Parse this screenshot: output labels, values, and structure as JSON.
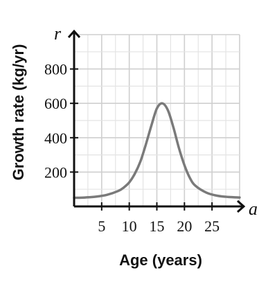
{
  "chart_data": {
    "type": "line",
    "title": "",
    "xlabel": "Age (years)",
    "ylabel": "Growth rate (kg/yr)",
    "x_var": "a",
    "y_var": "r",
    "xlim": [
      0,
      30
    ],
    "ylim": [
      0,
      1000
    ],
    "x_ticks": [
      5,
      10,
      15,
      20,
      25
    ],
    "x_tick_labels": [
      "5",
      "10",
      "15",
      "20",
      "25"
    ],
    "y_ticks": [
      200,
      400,
      600,
      800
    ],
    "y_tick_labels": [
      "200",
      "400",
      "600",
      "800"
    ],
    "grid": true,
    "x_minor_step": 2.5,
    "y_minor_step": 100,
    "series": [
      {
        "color": "#7a7a7a",
        "x": [
          0,
          2,
          4,
          6,
          8,
          9,
          10,
          11,
          12,
          13,
          14,
          15,
          16,
          17,
          18,
          19,
          20,
          21,
          22,
          24,
          26,
          28,
          30
        ],
        "y": [
          50,
          52,
          57,
          68,
          90,
          110,
          140,
          190,
          260,
          360,
          470,
          570,
          600,
          560,
          460,
          340,
          240,
          165,
          120,
          80,
          62,
          55,
          52
        ]
      }
    ]
  }
}
